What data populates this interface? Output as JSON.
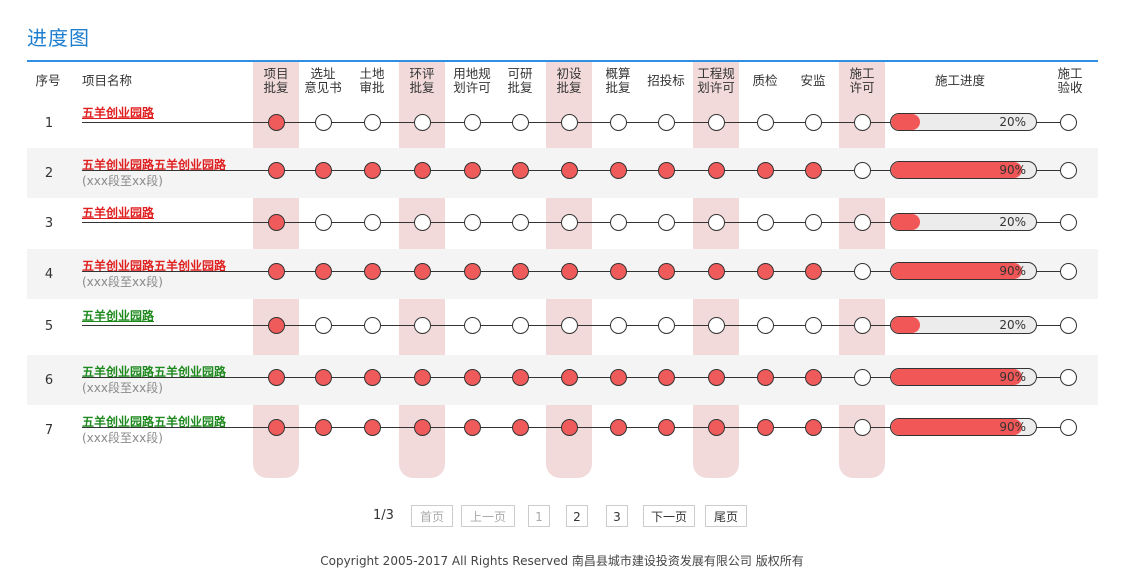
{
  "page_title": "进度图",
  "columns": [
    {
      "label": "序号"
    },
    {
      "label": "项目名称"
    },
    {
      "label": "项目\n批复"
    },
    {
      "label": "选址\n意见书"
    },
    {
      "label": "土地\n审批"
    },
    {
      "label": "环评\n批复"
    },
    {
      "label": "用地规\n划许可"
    },
    {
      "label": "可研\n批复"
    },
    {
      "label": "初设\n批复"
    },
    {
      "label": "概算\n批复"
    },
    {
      "label": "招投标"
    },
    {
      "label": "工程规\n划许可"
    },
    {
      "label": "质检"
    },
    {
      "label": "安监"
    },
    {
      "label": "施工\n许可"
    },
    {
      "label": "施工进度"
    },
    {
      "label": "施工\n验收"
    }
  ],
  "colors": {
    "accent": "#1f7fcf",
    "done": "#ef5a5a",
    "name_red": "#e02020",
    "name_green": "#1e8a1e",
    "highlight": "#f0d3d3"
  },
  "rows": [
    {
      "no": "1",
      "name": "五羊创业园路",
      "sub": "",
      "color": "red",
      "done": 1,
      "progress": 20,
      "progress_label": "20%"
    },
    {
      "no": "2",
      "name": "五羊创业园路五羊创业园路",
      "sub": "(xxx段至xx段)",
      "color": "red",
      "done": 12,
      "progress": 90,
      "progress_label": "90%"
    },
    {
      "no": "3",
      "name": "五羊创业园路",
      "sub": "",
      "color": "red",
      "done": 1,
      "progress": 20,
      "progress_label": "20%"
    },
    {
      "no": "4",
      "name": "五羊创业园路五羊创业园路",
      "sub": "(xxx段至xx段)",
      "color": "red",
      "done": 12,
      "progress": 90,
      "progress_label": "90%"
    },
    {
      "no": "5",
      "name": "五羊创业园路",
      "sub": "",
      "color": "green",
      "done": 1,
      "progress": 20,
      "progress_label": "20%"
    },
    {
      "no": "6",
      "name": "五羊创业园路五羊创业园路",
      "sub": "(xxx段至xx段)",
      "color": "green",
      "done": 12,
      "progress": 90,
      "progress_label": "90%"
    },
    {
      "no": "7",
      "name": "五羊创业园路五羊创业园路",
      "sub": "(xxx段至xx段)",
      "color": "green",
      "done": 12,
      "progress": 90,
      "progress_label": "90%"
    }
  ],
  "pagination": {
    "info": "1/3",
    "first": "首页",
    "prev": "上一页",
    "pages": [
      "1",
      "2",
      "3"
    ],
    "next": "下一页",
    "last": "尾页"
  },
  "footer": "Copyright 2005-2017   All Rights Reserved   南昌县城市建设投资发展有限公司   版权所有"
}
